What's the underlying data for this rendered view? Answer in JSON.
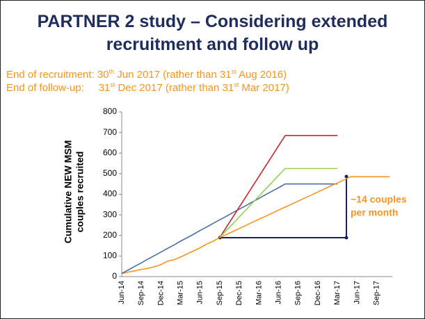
{
  "slide": {
    "title_lines": [
      "PARTNER 2 study – Considering extended",
      "recruitment and follow up"
    ],
    "subtitle_lines": [
      [
        "End of recruitment: 30",
        "th",
        " Jun 2017 (rather than 31",
        "st",
        " Aug 2016)"
      ],
      [
        "End of follow-up:     31",
        "st",
        " Dec 2017 (rather than 31",
        "st",
        " Mar 2017)"
      ]
    ]
  },
  "chart_data": {
    "type": "line",
    "categories": [
      "Jun-14",
      null,
      null,
      "Sep-14",
      null,
      null,
      "Dec-14",
      null,
      null,
      "Mar-15",
      null,
      null,
      "Jun-15",
      null,
      null,
      "Sep-15",
      null,
      null,
      "Dec-15",
      null,
      null,
      "Mar-16",
      null,
      null,
      "Jun-16",
      null,
      null,
      "Sep-16",
      null,
      null,
      "Dec-16",
      null,
      null,
      "Mar-17",
      null,
      null,
      "Jun-17",
      null,
      null,
      "Sep-17",
      null,
      null
    ],
    "series": [
      {
        "color": "#f7941d",
        "values": [
          15,
          22,
          28,
          35,
          40,
          48,
          58,
          75,
          82,
          95,
          110,
          125,
          140,
          158,
          172,
          190,
          null,
          null,
          null,
          null,
          null,
          null,
          null,
          null,
          null,
          null,
          null,
          null,
          null,
          null,
          null,
          null,
          null,
          null,
          null,
          null,
          null,
          null,
          null,
          null,
          null,
          null
        ]
      },
      {
        "color": "#4a6fa5",
        "values": [
          15,
          32,
          50,
          67,
          85,
          102,
          119,
          137,
          154,
          172,
          189,
          206,
          224,
          241,
          259,
          276,
          293,
          311,
          328,
          345,
          363,
          380,
          398,
          415,
          432,
          450,
          450,
          450,
          450,
          450,
          450,
          450,
          450,
          450,
          null,
          null,
          null,
          null,
          null,
          null,
          null,
          null
        ]
      },
      {
        "color": "#c0272d",
        "values": [
          null,
          null,
          null,
          null,
          null,
          null,
          null,
          null,
          null,
          null,
          null,
          null,
          null,
          null,
          null,
          190,
          240,
          289,
          339,
          388,
          438,
          487,
          537,
          586,
          636,
          685,
          685,
          685,
          685,
          685,
          685,
          685,
          685,
          685,
          null,
          null,
          null,
          null,
          null,
          null,
          null,
          null
        ]
      },
      {
        "color": "#92d050",
        "values": [
          null,
          null,
          null,
          null,
          null,
          null,
          null,
          null,
          null,
          null,
          null,
          null,
          null,
          null,
          null,
          190,
          224,
          257,
          291,
          324,
          358,
          391,
          425,
          458,
          492,
          525,
          525,
          525,
          525,
          525,
          525,
          525,
          525,
          525,
          null,
          null,
          null,
          null,
          null,
          null,
          null,
          null
        ]
      },
      {
        "color": "#f7941d",
        "values": [
          null,
          null,
          null,
          null,
          null,
          null,
          null,
          null,
          null,
          null,
          null,
          null,
          null,
          null,
          null,
          190,
          205,
          219,
          234,
          249,
          264,
          279,
          293,
          308,
          323,
          338,
          352,
          367,
          382,
          396,
          411,
          426,
          441,
          455,
          470,
          485,
          485,
          485,
          485,
          485,
          485,
          485
        ]
      }
    ],
    "ylabel_lines": [
      "Cumulative NEW MSM",
      "couples recruited"
    ],
    "ylim": [
      0,
      800
    ],
    "yticks": [
      0,
      100,
      200,
      300,
      400,
      500,
      600,
      700,
      800
    ],
    "annotation_lines": [
      "~14 couples",
      "per month"
    ],
    "annotation_color": "#f7941d"
  }
}
